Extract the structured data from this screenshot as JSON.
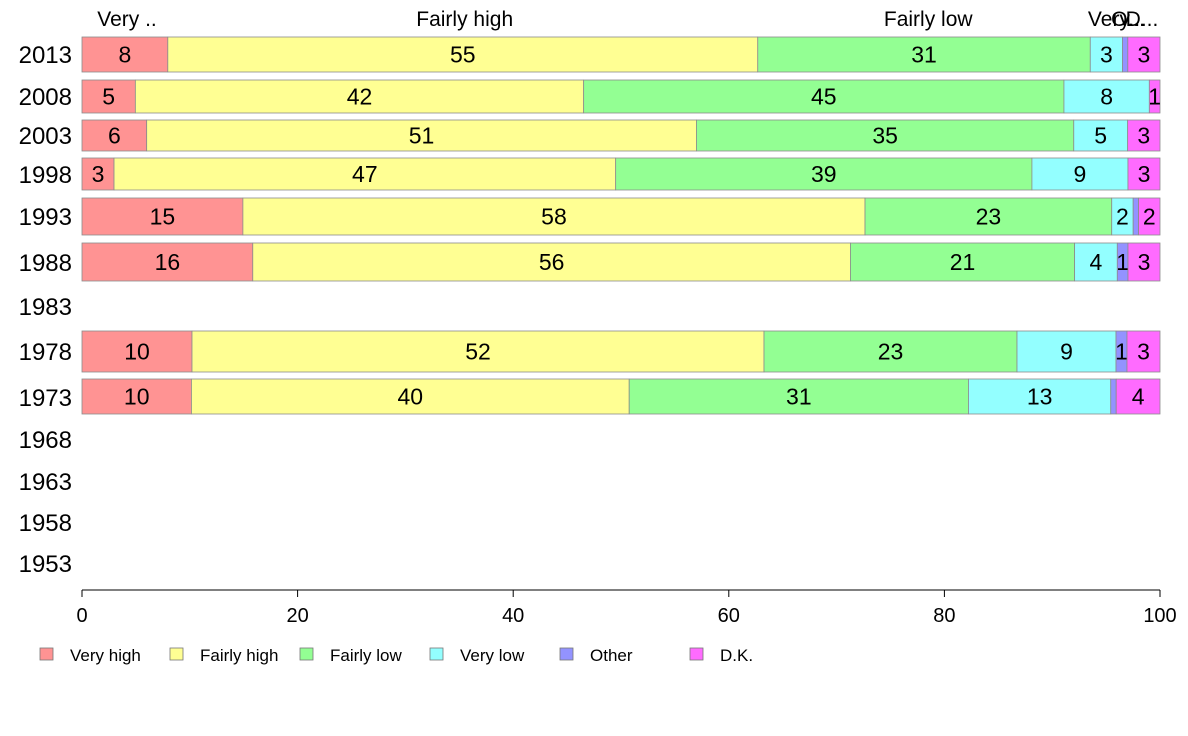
{
  "chart_data": {
    "type": "bar",
    "orientation": "horizontal",
    "stacked": true,
    "categories": [
      "2013",
      "2008",
      "2003",
      "1998",
      "1993",
      "1988",
      "1983",
      "1978",
      "1973",
      "1968",
      "1963",
      "1958",
      "1953"
    ],
    "series": [
      {
        "name": "Very high",
        "color": "#ff9393",
        "values": [
          8,
          5,
          6,
          3,
          15,
          16,
          null,
          10,
          10,
          null,
          null,
          null,
          null
        ]
      },
      {
        "name": "Fairly high",
        "color": "#ffff93",
        "values": [
          55,
          42,
          51,
          47,
          58,
          56,
          null,
          52,
          40,
          null,
          null,
          null,
          null
        ]
      },
      {
        "name": "Fairly low",
        "color": "#93ff93",
        "values": [
          31,
          45,
          35,
          39,
          23,
          21,
          null,
          23,
          31,
          null,
          null,
          null,
          null
        ]
      },
      {
        "name": "Very low",
        "color": "#93ffff",
        "values": [
          3,
          8,
          5,
          9,
          2,
          4,
          null,
          9,
          13,
          null,
          null,
          null,
          null
        ]
      },
      {
        "name": "Other",
        "color": "#9393ff",
        "values": [
          0.5,
          0,
          0,
          0,
          0.5,
          1,
          null,
          1,
          0.5,
          null,
          null,
          null,
          null
        ]
      },
      {
        "name": "D.K.",
        "color": "#ff6bff",
        "values": [
          3,
          1,
          3,
          3,
          2,
          3,
          null,
          3,
          4,
          null,
          null,
          null,
          null
        ]
      }
    ],
    "value_labels": [
      [
        "8",
        "55",
        "31",
        "3",
        "",
        "3"
      ],
      [
        "5",
        "42",
        "45",
        "8",
        "",
        "1"
      ],
      [
        "6",
        "51",
        "35",
        "5",
        "",
        "3"
      ],
      [
        "3",
        "47",
        "39",
        "9",
        "",
        "3"
      ],
      [
        "15",
        "58",
        "23",
        "2",
        "",
        "2"
      ],
      [
        "16",
        "56",
        "21",
        "4",
        "1",
        "3"
      ],
      [],
      [
        "10",
        "52",
        "23",
        "9",
        "1",
        "3"
      ],
      [
        "10",
        "40",
        "31",
        "13",
        "",
        "4"
      ],
      [],
      [],
      [],
      []
    ],
    "top_labels": [
      "Very ..",
      "Fairly high",
      "Fairly low",
      "Very..",
      "O...",
      "D..."
    ],
    "xlim": [
      0,
      100
    ],
    "xticks": [
      "0",
      "20",
      "40",
      "60",
      "80",
      "100"
    ],
    "grid": false,
    "legend_position": "bottom-left"
  }
}
